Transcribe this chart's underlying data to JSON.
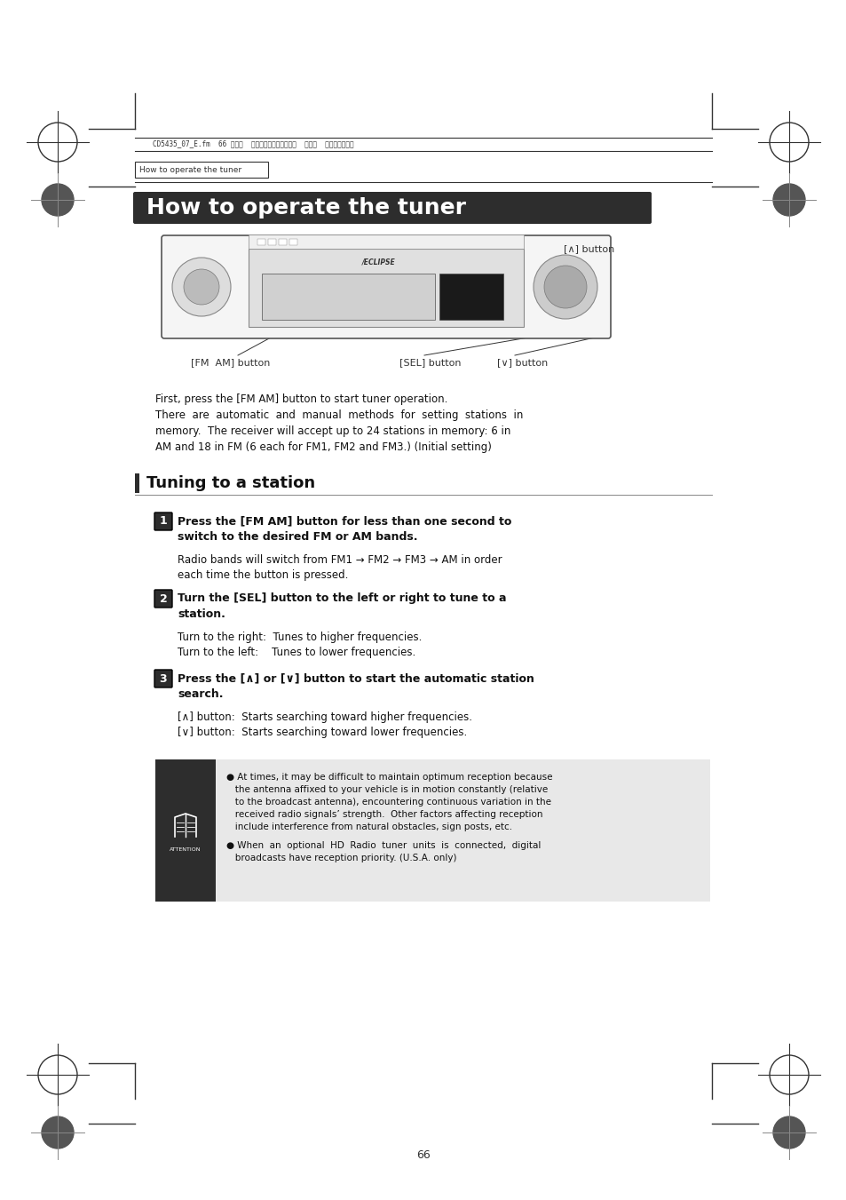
{
  "page_bg": "#ffffff",
  "header_text": "CD5435_07_E.fm  66 ページ  ２００４年１２月１５日  水曜日  午後６晎１７分",
  "breadcrumb": "How to operate the tuner",
  "main_title": "How to operate the tuner",
  "section_title": "Tuning to a station",
  "callout_button": "[∧] button",
  "label_fm_am": "[FM  AM] button",
  "label_sel": "[SEL] button",
  "label_v": "[∨] button",
  "intro_line1": "First, press the [FM AM] button to start tuner operation.",
  "intro_line2": "There  are  automatic  and  manual  methods  for  setting  stations  in",
  "intro_line3": "memory.  The receiver will accept up to 24 stations in memory: 6 in",
  "intro_line4": "AM and 18 in FM (6 each for FM1, FM2 and FM3.) (Initial setting)",
  "step1_bold": "Press the [FM AM] button for less than one second to\nswitch to the desired FM or AM bands.",
  "step1_normal1": "Radio bands will switch from FM1 → FM2 → FM3 → AM in order",
  "step1_normal2": "each time the button is pressed.",
  "step2_bold": "Turn the [SEL] button to the left or right to tune to a\nstation.",
  "step2_line1": "Turn to the right:  Tunes to higher frequencies.",
  "step2_line2": "Turn to the left:    Tunes to lower frequencies.",
  "step3_bold": "Press the [∧] or [∨] button to start the automatic station\nsearch.",
  "step3_line1": "[∧] button:  Starts searching toward higher frequencies.",
  "step3_line2": "[∨] button:  Starts searching toward lower frequencies.",
  "att_text1_l1": "● At times, it may be difficult to maintain optimum reception because",
  "att_text1_l2": "   the antenna affixed to your vehicle is in motion constantly (relative",
  "att_text1_l3": "   to the broadcast antenna), encountering continuous variation in the",
  "att_text1_l4": "   received radio signals’ strength.  Other factors affecting reception",
  "att_text1_l5": "   include interference from natural obstacles, sign posts, etc.",
  "att_text2_l1": "● When  an  optional  HD  Radio  tuner  units  is  connected,  digital",
  "att_text2_l2": "   broadcasts have reception priority. (U.S.A. only)",
  "page_number": "66",
  "title_bg": "#2d2d2d",
  "title_fg": "#ffffff",
  "section_bar_color": "#2d2d2d",
  "step_badge_color": "#2d2d2d",
  "attention_bg": "#e8e8e8",
  "attention_badge_bg": "#2d2d2d"
}
